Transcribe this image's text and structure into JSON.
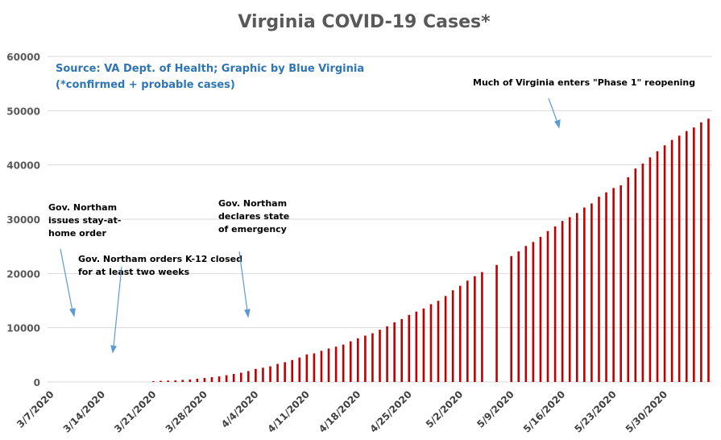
{
  "chart_data": {
    "type": "bar",
    "title": "Virginia COVID-19 Cases*",
    "source_lines": [
      "Source: VA Dept. of Health; Graphic by Blue Virginia",
      "(*confirmed + probable cases)"
    ],
    "xlabel": "",
    "ylabel": "",
    "ylim": [
      0,
      60000
    ],
    "yticks": [
      0,
      10000,
      20000,
      30000,
      40000,
      50000,
      60000
    ],
    "ytick_labels": [
      "0",
      "10000",
      "20000",
      "30000",
      "40000",
      "50000",
      "60000"
    ],
    "xtick_labels": [
      "3/7/2020",
      "3/14/2020",
      "3/21/2020",
      "3/28/2020",
      "4/4/2020",
      "4/11/2020",
      "4/18/2020",
      "4/25/2020",
      "5/2/2020",
      "5/9/2020",
      "5/16/2020",
      "5/23/2020",
      "5/30/2020"
    ],
    "grid": true,
    "bar_color": "#c00000",
    "grid_color": "#d9d9d9",
    "categories": [
      "3/7/2020",
      "3/8/2020",
      "3/9/2020",
      "3/10/2020",
      "3/11/2020",
      "3/12/2020",
      "3/13/2020",
      "3/14/2020",
      "3/15/2020",
      "3/16/2020",
      "3/17/2020",
      "3/18/2020",
      "3/19/2020",
      "3/20/2020",
      "3/21/2020",
      "3/22/2020",
      "3/23/2020",
      "3/24/2020",
      "3/25/2020",
      "3/26/2020",
      "3/27/2020",
      "3/28/2020",
      "3/29/2020",
      "3/30/2020",
      "3/31/2020",
      "4/1/2020",
      "4/2/2020",
      "4/3/2020",
      "4/4/2020",
      "4/5/2020",
      "4/6/2020",
      "4/7/2020",
      "4/8/2020",
      "4/9/2020",
      "4/10/2020",
      "4/11/2020",
      "4/12/2020",
      "4/13/2020",
      "4/14/2020",
      "4/15/2020",
      "4/16/2020",
      "4/17/2020",
      "4/18/2020",
      "4/19/2020",
      "4/20/2020",
      "4/21/2020",
      "4/22/2020",
      "4/23/2020",
      "4/24/2020",
      "4/25/2020",
      "4/26/2020",
      "4/27/2020",
      "4/28/2020",
      "4/29/2020",
      "4/30/2020",
      "5/1/2020",
      "5/2/2020",
      "5/3/2020",
      "5/4/2020",
      "5/5/2020",
      "5/6/2020",
      "5/7/2020",
      "5/8/2020",
      "5/9/2020",
      "5/10/2020",
      "5/11/2020",
      "5/12/2020",
      "5/13/2020",
      "5/14/2020",
      "5/15/2020",
      "5/16/2020",
      "5/17/2020",
      "5/18/2020",
      "5/19/2020",
      "5/20/2020",
      "5/21/2020",
      "5/22/2020",
      "5/23/2020",
      "5/24/2020",
      "5/25/2020",
      "5/26/2020",
      "5/27/2020",
      "5/28/2020",
      "5/29/2020",
      "5/30/2020",
      "5/31/2020",
      "6/1/2020",
      "6/2/2020",
      "6/3/2020",
      "6/4/2020",
      "6/5/2020"
    ],
    "values": [
      0,
      0,
      0,
      0,
      0,
      0,
      0,
      0,
      0,
      0,
      0,
      0,
      0,
      0,
      152,
      219,
      254,
      290,
      391,
      460,
      604,
      739,
      890,
      1020,
      1250,
      1484,
      1706,
      2012,
      2407,
      2637,
      2878,
      3333,
      3645,
      4042,
      4509,
      5077,
      5274,
      5747,
      6171,
      6500,
      6889,
      7491,
      8053,
      8542,
      8990,
      9630,
      10266,
      10998,
      11594,
      12366,
      12970,
      13535,
      14339,
      14961,
      15846,
      16901,
      17731,
      18671,
      19492,
      20256,
      null,
      21570,
      null,
      23196,
      24081,
      25070,
      25800,
      26746,
      27813,
      28672,
      29683,
      30388,
      31140,
      32145,
      32908,
      34137,
      34950,
      35749,
      36244,
      37727,
      39342,
      40249,
      41401,
      42533,
      43611,
      44607,
      45398,
      46239,
      46905,
      47856,
      48532
    ]
  },
  "annotations": {
    "stay_at_home": [
      "Gov. Northam",
      "issues stay-at-",
      "home order"
    ],
    "k12_closed": [
      "Gov. Northam orders K-12 closed",
      "for at least two weeks"
    ],
    "state_of_emergency": [
      "Gov. Northam",
      "declares state",
      "of emergency"
    ],
    "phase1": [
      "Much of Virginia enters \"Phase 1\" reopening"
    ]
  }
}
